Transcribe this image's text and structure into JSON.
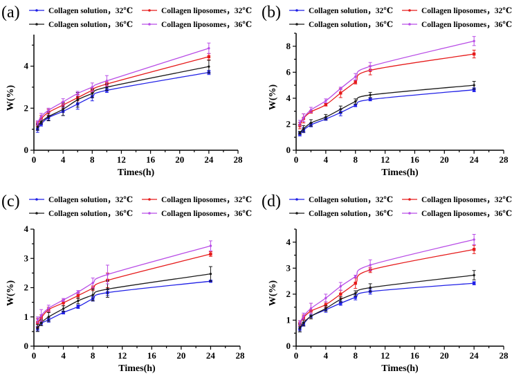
{
  "colors": {
    "sol32": "#1f1fe6",
    "sol36": "#1a1a1a",
    "lip32": "#e61a1a",
    "lip36": "#b84ce6"
  },
  "chart_data": [
    {
      "type": "line",
      "panel_label": "(a)",
      "xlabel": "Times(h)",
      "ylabel": "W(%)",
      "xlim": [
        0,
        28
      ],
      "xticks": [
        0,
        4,
        8,
        12,
        16,
        20,
        24,
        28
      ],
      "ylim": [
        0,
        5.5
      ],
      "yticks": [
        0,
        2,
        4
      ],
      "x": [
        0.5,
        1,
        2,
        4,
        6,
        8,
        10,
        24
      ],
      "series": [
        {
          "name": "Collagen solution，32℃",
          "key": "sol32",
          "values": [
            1.0,
            1.25,
            1.55,
            1.85,
            2.2,
            2.55,
            2.85,
            3.7
          ],
          "errors": [
            0.15,
            0.1,
            0.12,
            0.2,
            0.25,
            0.2,
            0.1,
            0.1
          ]
        },
        {
          "name": "Collagen liposomes，32℃",
          "key": "lip32",
          "values": [
            1.25,
            1.5,
            1.8,
            2.15,
            2.5,
            2.85,
            3.15,
            4.45
          ],
          "errors": [
            0.1,
            0.15,
            0.15,
            0.15,
            0.15,
            0.1,
            0.1,
            0.15
          ]
        },
        {
          "name": "Collagen solution，36℃",
          "key": "sol36",
          "values": [
            1.1,
            1.35,
            1.6,
            1.95,
            2.4,
            2.7,
            3.0,
            3.98
          ],
          "errors": [
            0.15,
            0.1,
            0.2,
            0.3,
            0.35,
            0.2,
            0.15,
            0.3
          ]
        },
        {
          "name": "Collagen liposomes，36℃",
          "key": "lip36",
          "values": [
            1.3,
            1.6,
            1.9,
            2.3,
            2.7,
            3.0,
            3.3,
            4.85
          ],
          "errors": [
            0.1,
            0.15,
            0.1,
            0.15,
            0.1,
            0.2,
            0.25,
            0.25
          ]
        }
      ]
    },
    {
      "type": "line",
      "panel_label": "(b)",
      "xlabel": "Times(h)",
      "ylabel": "W(%)",
      "xlim": [
        0,
        28
      ],
      "xticks": [
        0,
        4,
        8,
        12,
        16,
        20,
        24,
        28
      ],
      "ylim": [
        0,
        9
      ],
      "yticks": [
        0,
        2,
        4,
        6,
        8
      ],
      "x": [
        0.5,
        1,
        2,
        4,
        6,
        8,
        10,
        24
      ],
      "series": [
        {
          "name": "Collagen solution，32℃",
          "key": "sol32",
          "values": [
            1.25,
            1.55,
            1.95,
            2.4,
            2.9,
            3.45,
            3.9,
            4.65
          ],
          "errors": [
            0.15,
            0.2,
            0.15,
            0.1,
            0.25,
            0.1,
            0.1,
            0.15
          ]
        },
        {
          "name": "Collagen liposomes，32℃",
          "key": "lip32",
          "values": [
            1.9,
            2.45,
            2.95,
            3.5,
            4.4,
            5.25,
            6.15,
            7.4
          ],
          "errors": [
            0.25,
            0.35,
            0.1,
            0.1,
            0.35,
            0.15,
            0.35,
            0.3
          ]
        },
        {
          "name": "Collagen solution，36℃",
          "key": "sol36",
          "values": [
            1.35,
            1.65,
            2.1,
            2.55,
            3.15,
            3.75,
            4.25,
            5.0
          ],
          "errors": [
            0.1,
            0.25,
            0.25,
            0.2,
            0.25,
            0.2,
            0.2,
            0.3
          ]
        },
        {
          "name": "Collagen liposomes，36℃",
          "key": "lip36",
          "values": [
            2.1,
            2.5,
            3.1,
            3.8,
            4.75,
            5.65,
            6.45,
            8.4
          ],
          "errors": [
            0.2,
            0.3,
            0.2,
            0.15,
            0.1,
            0.25,
            0.3,
            0.35
          ]
        }
      ]
    },
    {
      "type": "line",
      "panel_label": "(c)",
      "xlabel": "Times(h)",
      "ylabel": "W(%)",
      "xlim": [
        0,
        28
      ],
      "xticks": [
        0,
        4,
        8,
        12,
        16,
        20,
        24,
        28
      ],
      "ylim": [
        0,
        4
      ],
      "yticks": [
        0,
        1,
        2,
        3,
        4
      ],
      "x": [
        0.5,
        1,
        2,
        4,
        6,
        8,
        10,
        24
      ],
      "series": [
        {
          "name": "Collagen solution，32℃",
          "key": "sol32",
          "values": [
            0.6,
            0.78,
            0.9,
            1.15,
            1.35,
            1.62,
            1.83,
            2.22
          ],
          "errors": [
            0.08,
            0.08,
            0.08,
            0.05,
            0.06,
            0.08,
            0.1,
            0.03
          ]
        },
        {
          "name": "Collagen liposomes，32℃",
          "key": "lip32",
          "values": [
            0.8,
            0.97,
            1.25,
            1.48,
            1.73,
            1.98,
            2.25,
            3.15
          ],
          "errors": [
            0.15,
            0.1,
            0.08,
            0.1,
            0.1,
            0.08,
            0.25,
            0.08
          ]
        },
        {
          "name": "Collagen solution，36℃",
          "key": "sol36",
          "values": [
            0.62,
            0.8,
            1.0,
            1.28,
            1.55,
            1.75,
            1.95,
            2.47
          ],
          "errors": [
            0.12,
            0.1,
            0.15,
            0.1,
            0.1,
            0.2,
            0.28,
            0.25
          ]
        },
        {
          "name": "Collagen liposomes，36℃",
          "key": "lip36",
          "values": [
            0.9,
            1.05,
            1.3,
            1.58,
            1.85,
            2.16,
            2.45,
            3.43
          ],
          "errors": [
            0.1,
            0.2,
            0.1,
            0.05,
            0.05,
            0.17,
            0.32,
            0.17
          ]
        }
      ]
    },
    {
      "type": "line",
      "panel_label": "(d)",
      "xlabel": "Times(h)",
      "ylabel": "W(%)",
      "xlim": [
        0,
        28
      ],
      "xticks": [
        0,
        4,
        8,
        12,
        16,
        20,
        24,
        28
      ],
      "ylim": [
        0,
        4.5
      ],
      "yticks": [
        0,
        1,
        2,
        3,
        4
      ],
      "x": [
        0.5,
        1,
        2,
        4,
        6,
        8,
        10,
        24
      ],
      "series": [
        {
          "name": "Collagen solution，32℃",
          "key": "sol32",
          "values": [
            0.65,
            0.85,
            1.15,
            1.4,
            1.65,
            1.88,
            2.1,
            2.42
          ],
          "errors": [
            0.1,
            0.08,
            0.05,
            0.1,
            0.08,
            0.1,
            0.1,
            0.06
          ]
        },
        {
          "name": "Collagen liposomes，32℃",
          "key": "lip32",
          "values": [
            0.88,
            1.1,
            1.35,
            1.6,
            2.0,
            2.42,
            2.93,
            3.72
          ],
          "errors": [
            0.1,
            0.1,
            0.3,
            0.1,
            0.15,
            0.2,
            0.1,
            0.16
          ]
        },
        {
          "name": "Collagen solution，36℃",
          "key": "sol36",
          "values": [
            0.7,
            0.9,
            1.15,
            1.45,
            1.8,
            2.03,
            2.25,
            2.73
          ],
          "errors": [
            0.15,
            0.12,
            0.1,
            0.1,
            0.1,
            0.1,
            0.15,
            0.18
          ]
        },
        {
          "name": "Collagen liposomes，36℃",
          "key": "lip36",
          "values": [
            0.9,
            1.15,
            1.45,
            1.85,
            2.3,
            2.68,
            3.12,
            4.1
          ],
          "errors": [
            0.08,
            0.12,
            0.2,
            0.15,
            0.15,
            0.05,
            0.2,
            0.2
          ]
        }
      ]
    }
  ]
}
